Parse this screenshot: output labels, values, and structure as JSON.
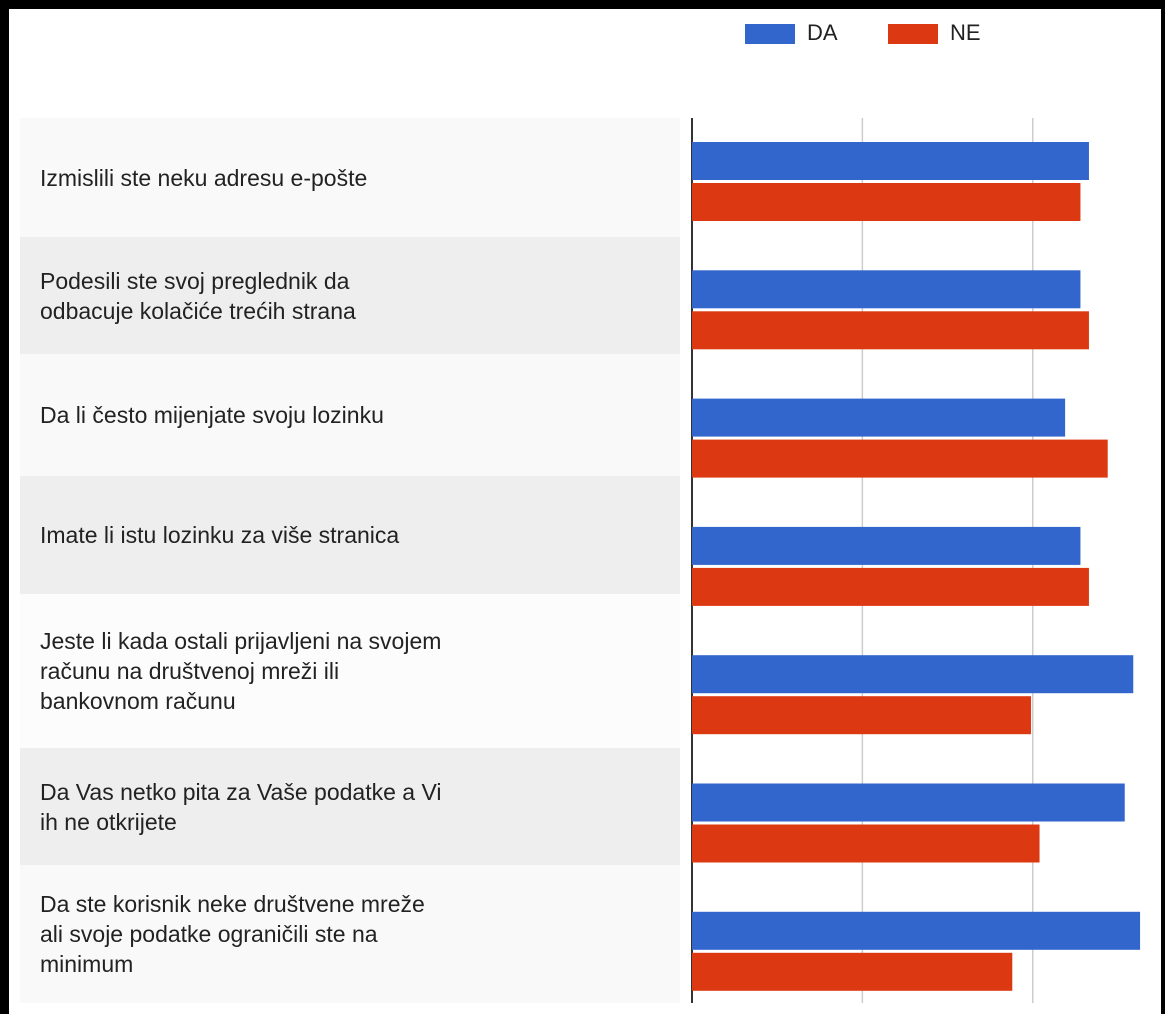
{
  "chart_data": {
    "type": "hbar",
    "categories": [
      "Izmislili ste neku adresu e-pošte",
      "Podesili ste svoj preglednik da\nodbacuje kolačiće trećih strana",
      "Da li često mijenjate svoju lozinku",
      "Imate li istu lozinku za više stranica",
      "Jeste li kada ostali prijavljeni na svojem\nračunu na društvenoj mreži ili\nbankovnom računu",
      "Da Vas netko pita za Vaše podatke a Vi\nih ne otkrijete",
      "Da ste korisnik neke društvene mreže\nali svoje podatke ograničili ste na\nminimum"
    ],
    "series": [
      {
        "name": "DA",
        "color": "#3366cc",
        "values": [
          23.3,
          22.8,
          21.9,
          22.8,
          25.9,
          25.4,
          26.3
        ]
      },
      {
        "name": "NE",
        "color": "#dc3912",
        "values": [
          22.8,
          23.3,
          24.4,
          23.3,
          19.9,
          20.4,
          18.8
        ]
      }
    ],
    "xlim": [
      0,
      27
    ],
    "xticks": [
      0,
      10,
      20
    ],
    "grid": true,
    "legend": "top"
  }
}
